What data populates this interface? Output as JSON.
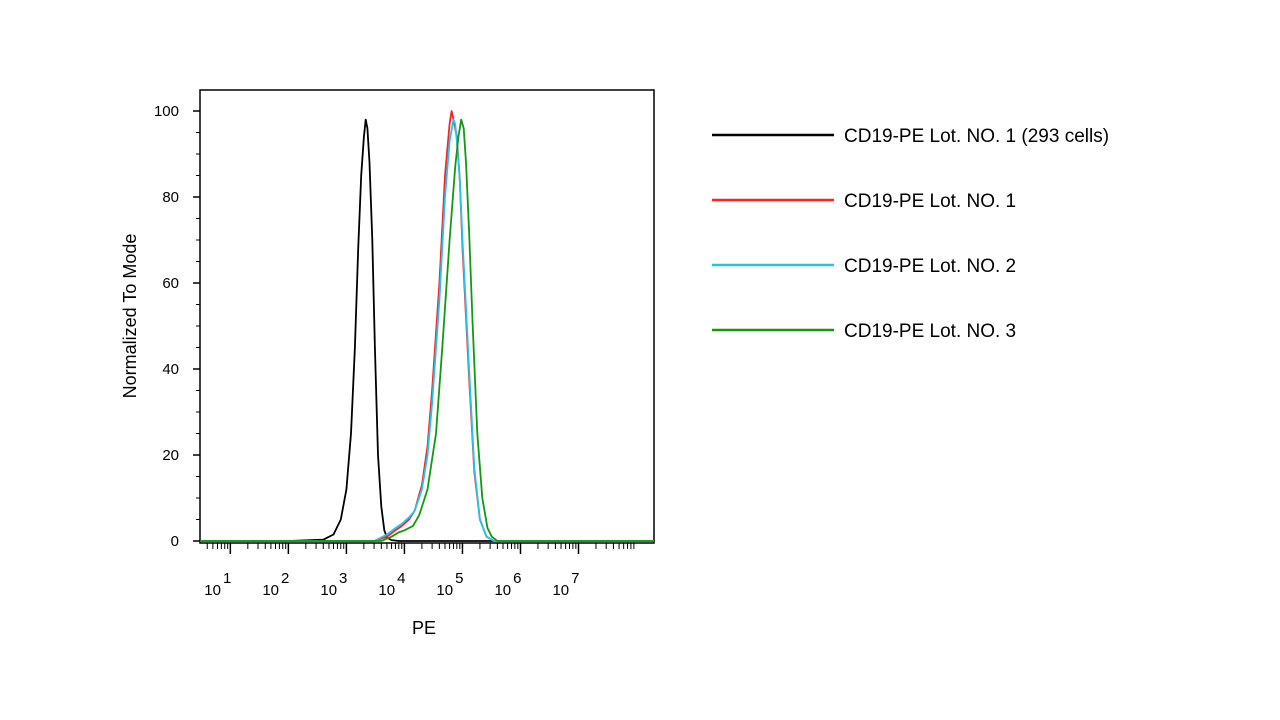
{
  "chart_data": {
    "type": "line",
    "xlabel": "PE",
    "ylabel": "Normalized To Mode",
    "x_scale": "log",
    "xlim": [
      3,
      200000000
    ],
    "ylim": [
      0,
      100
    ],
    "x_ticks": [
      {
        "value": 10,
        "base": "10",
        "exp": "1"
      },
      {
        "value": 100,
        "base": "10",
        "exp": "2"
      },
      {
        "value": 1000,
        "base": "10",
        "exp": "3"
      },
      {
        "value": 10000,
        "base": "10",
        "exp": "4"
      },
      {
        "value": 100000,
        "base": "10",
        "exp": "5"
      },
      {
        "value": 1000000,
        "base": "10",
        "exp": "6"
      },
      {
        "value": 10000000,
        "base": "10",
        "exp": "7"
      }
    ],
    "y_ticks": [
      0,
      20,
      40,
      60,
      80,
      100
    ],
    "grid": false,
    "legend_position": "right",
    "series": [
      {
        "name": "CD19-PE Lot. NO. 1 (293 cells)",
        "color": "#000000",
        "points": [
          [
            3,
            0
          ],
          [
            100,
            0
          ],
          [
            400,
            0.3
          ],
          [
            600,
            1.5
          ],
          [
            800,
            5
          ],
          [
            1000,
            12
          ],
          [
            1200,
            25
          ],
          [
            1400,
            45
          ],
          [
            1600,
            68
          ],
          [
            1800,
            85
          ],
          [
            2000,
            94
          ],
          [
            2150,
            98
          ],
          [
            2300,
            96
          ],
          [
            2500,
            88
          ],
          [
            2800,
            70
          ],
          [
            3100,
            45
          ],
          [
            3500,
            20
          ],
          [
            4000,
            8
          ],
          [
            4500,
            2.5
          ],
          [
            5000,
            0.8
          ],
          [
            6000,
            0.2
          ],
          [
            8000,
            0
          ],
          [
            200000000,
            0
          ]
        ]
      },
      {
        "name": "CD19-PE Lot. NO. 1",
        "color": "#ff2020",
        "points": [
          [
            3,
            0
          ],
          [
            3000,
            0
          ],
          [
            5000,
            1
          ],
          [
            7000,
            2.5
          ],
          [
            9000,
            3.5
          ],
          [
            12000,
            5
          ],
          [
            15000,
            7
          ],
          [
            20000,
            13
          ],
          [
            25000,
            22
          ],
          [
            30000,
            35
          ],
          [
            40000,
            60
          ],
          [
            50000,
            85
          ],
          [
            60000,
            97
          ],
          [
            65000,
            100
          ],
          [
            70000,
            98
          ],
          [
            80000,
            94
          ],
          [
            90000,
            84
          ],
          [
            100000,
            68
          ],
          [
            130000,
            38
          ],
          [
            160000,
            16
          ],
          [
            200000,
            5
          ],
          [
            260000,
            1
          ],
          [
            350000,
            0
          ],
          [
            200000000,
            0
          ]
        ]
      },
      {
        "name": "CD19-PE Lot. NO. 2",
        "color": "#22c5e8",
        "points": [
          [
            3,
            0
          ],
          [
            3000,
            0
          ],
          [
            5000,
            1.5
          ],
          [
            7000,
            3
          ],
          [
            9000,
            4
          ],
          [
            12000,
            5.5
          ],
          [
            15000,
            7
          ],
          [
            20000,
            12
          ],
          [
            25000,
            20
          ],
          [
            30000,
            32
          ],
          [
            40000,
            56
          ],
          [
            50000,
            80
          ],
          [
            60000,
            93
          ],
          [
            70000,
            98
          ],
          [
            75000,
            97
          ],
          [
            80000,
            93
          ],
          [
            90000,
            84
          ],
          [
            100000,
            70
          ],
          [
            130000,
            40
          ],
          [
            160000,
            17
          ],
          [
            200000,
            5
          ],
          [
            260000,
            1
          ],
          [
            350000,
            0
          ],
          [
            200000000,
            0
          ]
        ]
      },
      {
        "name": "CD19-PE Lot. NO. 3",
        "color": "#119911",
        "points": [
          [
            3,
            0
          ],
          [
            4000,
            0
          ],
          [
            6000,
            1
          ],
          [
            8000,
            2
          ],
          [
            10000,
            2.5
          ],
          [
            14000,
            3.5
          ],
          [
            18000,
            6
          ],
          [
            25000,
            12
          ],
          [
            35000,
            25
          ],
          [
            45000,
            45
          ],
          [
            60000,
            70
          ],
          [
            75000,
            87
          ],
          [
            85000,
            94
          ],
          [
            95000,
            98
          ],
          [
            105000,
            96
          ],
          [
            115000,
            88
          ],
          [
            130000,
            72
          ],
          [
            150000,
            50
          ],
          [
            180000,
            25
          ],
          [
            220000,
            10
          ],
          [
            270000,
            3
          ],
          [
            320000,
            1
          ],
          [
            400000,
            0
          ],
          [
            200000000,
            0
          ]
        ]
      }
    ]
  }
}
